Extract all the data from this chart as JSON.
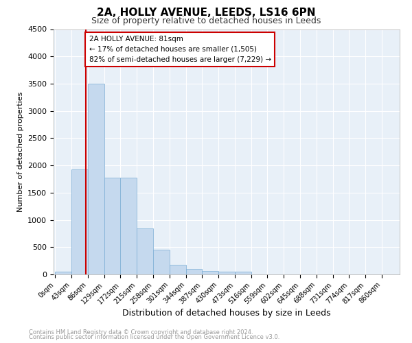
{
  "title": "2A, HOLLY AVENUE, LEEDS, LS16 6PN",
  "subtitle": "Size of property relative to detached houses in Leeds",
  "xlabel": "Distribution of detached houses by size in Leeds",
  "ylabel": "Number of detached properties",
  "bar_color": "#c5d9ee",
  "bar_edge_color": "#7aadd4",
  "bg_color": "#e8f0f8",
  "grid_color": "#ffffff",
  "categories": [
    "0sqm",
    "43sqm",
    "86sqm",
    "129sqm",
    "172sqm",
    "215sqm",
    "258sqm",
    "301sqm",
    "344sqm",
    "387sqm",
    "430sqm",
    "473sqm",
    "516sqm",
    "559sqm",
    "602sqm",
    "645sqm",
    "688sqm",
    "731sqm",
    "774sqm",
    "817sqm",
    "860sqm"
  ],
  "values": [
    50,
    1920,
    3500,
    1780,
    1780,
    840,
    450,
    170,
    105,
    65,
    55,
    55,
    0,
    0,
    0,
    0,
    0,
    0,
    0,
    0,
    0
  ],
  "ylim": [
    0,
    4500
  ],
  "yticks": [
    0,
    500,
    1000,
    1500,
    2000,
    2500,
    3000,
    3500,
    4000,
    4500
  ],
  "marker_label": "2A HOLLY AVENUE: 81sqm",
  "annotation_line1": "← 17% of detached houses are smaller (1,505)",
  "annotation_line2": "82% of semi-detached houses are larger (7,229) →",
  "footer_line1": "Contains HM Land Registry data © Crown copyright and database right 2024.",
  "footer_line2": "Contains public sector information licensed under the Open Government Licence v3.0.",
  "red_line_color": "#cc0000",
  "annotation_box_color": "#ffffff",
  "annotation_box_edge": "#cc0000",
  "bin_width": 43,
  "n_bins": 21,
  "red_line_bin_index": 1.88
}
